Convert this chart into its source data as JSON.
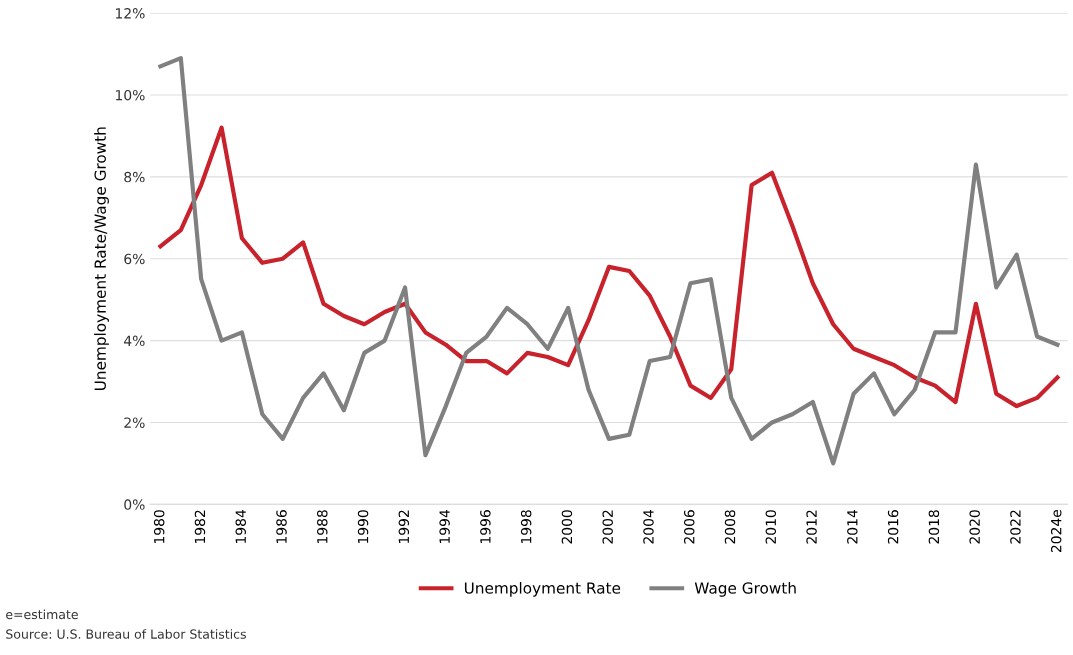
{
  "chart_data": {
    "type": "line",
    "ylabel": "Unemployment Rate/Wage Growth",
    "categories": [
      "1980",
      null,
      "1982",
      null,
      "1984",
      null,
      "1986",
      null,
      "1988",
      null,
      "1990",
      null,
      "1992",
      null,
      "1994",
      null,
      "1996",
      null,
      "1998",
      null,
      "2000",
      null,
      "2002",
      null,
      "2004",
      null,
      "2006",
      null,
      "2008",
      null,
      "2010",
      null,
      "2012",
      null,
      "2014",
      null,
      "2016",
      null,
      "2018",
      null,
      "2020",
      null,
      "2022",
      null,
      "2024e"
    ],
    "series": [
      {
        "name": "Unemployment Rate",
        "color": "#c8232c",
        "values": [
          6.3,
          6.7,
          7.8,
          9.2,
          6.5,
          5.9,
          6.0,
          6.4,
          4.9,
          4.6,
          4.4,
          4.7,
          4.9,
          4.2,
          3.9,
          3.5,
          3.5,
          3.2,
          3.7,
          3.6,
          3.4,
          4.5,
          5.8,
          5.7,
          5.1,
          4.1,
          2.9,
          2.6,
          3.3,
          7.8,
          8.1,
          6.8,
          5.4,
          4.4,
          3.8,
          3.6,
          3.4,
          3.1,
          2.9,
          2.5,
          4.9,
          2.7,
          2.4,
          2.6,
          3.1
        ]
      },
      {
        "name": "Wage Growth",
        "color": "#808080",
        "values": [
          10.7,
          10.9,
          5.5,
          4.0,
          4.2,
          2.2,
          1.6,
          2.6,
          3.2,
          2.3,
          3.7,
          4.0,
          5.3,
          1.2,
          2.4,
          3.7,
          4.1,
          4.8,
          4.4,
          3.8,
          4.8,
          2.8,
          1.6,
          1.7,
          3.5,
          3.6,
          5.4,
          5.5,
          2.6,
          1.6,
          2.0,
          2.2,
          2.5,
          1.0,
          2.7,
          3.2,
          2.2,
          2.8,
          4.2,
          4.2,
          8.3,
          5.3,
          6.1,
          4.1,
          3.9
        ]
      }
    ],
    "ylim": [
      0,
      12
    ],
    "yticks": [
      {
        "value": 0,
        "label": "0%"
      },
      {
        "value": 2,
        "label": "2%"
      },
      {
        "value": 4,
        "label": "4%"
      },
      {
        "value": 6,
        "label": "6%"
      },
      {
        "value": 8,
        "label": "8%"
      },
      {
        "value": 10,
        "label": "10%"
      },
      {
        "value": 12,
        "label": "12%"
      }
    ],
    "grid": "y",
    "legend": "bottom",
    "marker": "none",
    "line_style": "solid",
    "annotations": [
      "e=estimate",
      "Source: U.S. Bureau of Labor Statistics"
    ]
  }
}
